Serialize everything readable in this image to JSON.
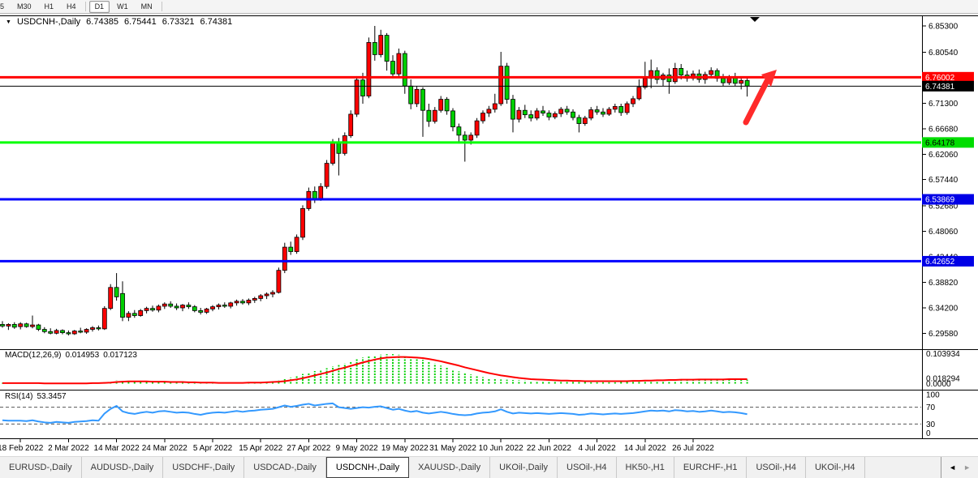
{
  "toolbar": {
    "buttons": [
      "5",
      "M30",
      "H1",
      "H4",
      "D1",
      "W1",
      "MN"
    ],
    "active": "D1"
  },
  "chart": {
    "header": {
      "dropdown_glyph": "▼",
      "title": "USDCNH-,Daily",
      "open": "6.74385",
      "high": "6.75441",
      "low": "6.73321",
      "close": "6.74381"
    },
    "macd": {
      "label": "MACD(12,26,9)",
      "value_main": "0.014953",
      "value_signal": "0.017123"
    },
    "rsi": {
      "label": "RSI(14)",
      "value": "53.3457"
    }
  },
  "chart_data": {
    "type": "candlestick",
    "title": "USDCNH-, Daily",
    "ylim": [
      6.2958,
      6.853
    ],
    "price_axis_ticks": [
      "6.85300",
      "6.80540",
      "6.71300",
      "6.66680",
      "6.62060",
      "6.57440",
      "6.52680",
      "6.48060",
      "6.43440",
      "6.38820",
      "6.34200",
      "6.29580"
    ],
    "horizontal_lines": [
      {
        "value": "6.76002",
        "price": 6.76002,
        "color": "#ff0000",
        "badge_color": "#ff0000",
        "text_color": "#ffffff",
        "width": 3
      },
      {
        "value": "6.74381",
        "price": 6.74381,
        "color": "#000000",
        "badge_color": "#000000",
        "text_color": "#ffffff",
        "width": 1
      },
      {
        "value": "6.64178",
        "price": 6.64178,
        "color": "#00ff00",
        "badge_color": "#00dd00",
        "text_color": "#000000",
        "width": 3
      },
      {
        "value": "6.53869",
        "price": 6.53869,
        "color": "#0000ff",
        "badge_color": "#0000e6",
        "text_color": "#ffffff",
        "width": 3
      },
      {
        "value": "6.42652",
        "price": 6.42652,
        "color": "#0000ff",
        "badge_color": "#0000e6",
        "text_color": "#ffffff",
        "width": 3
      }
    ],
    "date_labels": [
      "18 Feb 2022",
      "2 Mar 2022",
      "14 Mar 2022",
      "24 Mar 2022",
      "5 Apr 2022",
      "15 Apr 2022",
      "27 Apr 2022",
      "9 May 2022",
      "19 May 2022",
      "31 May 2022",
      "10 Jun 2022",
      "22 Jun 2022",
      "4 Jul 2022",
      "14 Jul 2022",
      "26 Jul 2022"
    ],
    "candles": [
      [
        6.312,
        6.318,
        6.306,
        6.309
      ],
      [
        6.309,
        6.314,
        6.302,
        6.312
      ],
      [
        6.312,
        6.316,
        6.304,
        6.307
      ],
      [
        6.308,
        6.316,
        6.303,
        6.313
      ],
      [
        6.313,
        6.315,
        6.306,
        6.308
      ],
      [
        6.308,
        6.328,
        6.305,
        6.311
      ],
      [
        6.311,
        6.313,
        6.3,
        6.303
      ],
      [
        6.303,
        6.307,
        6.296,
        6.299
      ],
      [
        6.299,
        6.305,
        6.294,
        6.296
      ],
      [
        6.296,
        6.304,
        6.294,
        6.301
      ],
      [
        6.301,
        6.303,
        6.294,
        6.297
      ],
      [
        6.297,
        6.301,
        6.292,
        6.295
      ],
      [
        6.295,
        6.302,
        6.293,
        6.3
      ],
      [
        6.3,
        6.306,
        6.296,
        6.298
      ],
      [
        6.298,
        6.305,
        6.295,
        6.303
      ],
      [
        6.303,
        6.309,
        6.299,
        6.306
      ],
      [
        6.306,
        6.31,
        6.301,
        6.304
      ],
      [
        6.304,
        6.345,
        6.302,
        6.341
      ],
      [
        6.341,
        6.385,
        6.338,
        6.379
      ],
      [
        6.379,
        6.405,
        6.355,
        6.362
      ],
      [
        6.368,
        6.39,
        6.318,
        6.325
      ],
      [
        6.325,
        6.336,
        6.318,
        6.332
      ],
      [
        6.332,
        6.338,
        6.324,
        6.328
      ],
      [
        6.328,
        6.34,
        6.326,
        6.337
      ],
      [
        6.337,
        6.344,
        6.332,
        6.341
      ],
      [
        6.341,
        6.346,
        6.335,
        6.338
      ],
      [
        6.338,
        6.348,
        6.334,
        6.345
      ],
      [
        6.345,
        6.352,
        6.34,
        6.349
      ],
      [
        6.349,
        6.354,
        6.342,
        6.345
      ],
      [
        6.345,
        6.35,
        6.338,
        6.342
      ],
      [
        6.342,
        6.349,
        6.336,
        6.347
      ],
      [
        6.347,
        6.352,
        6.34,
        6.344
      ],
      [
        6.344,
        6.347,
        6.334,
        6.337
      ],
      [
        6.337,
        6.342,
        6.33,
        6.334
      ],
      [
        6.334,
        6.342,
        6.331,
        6.34
      ],
      [
        6.34,
        6.347,
        6.336,
        6.344
      ],
      [
        6.344,
        6.35,
        6.339,
        6.347
      ],
      [
        6.347,
        6.352,
        6.342,
        6.345
      ],
      [
        6.345,
        6.353,
        6.341,
        6.351
      ],
      [
        6.351,
        6.357,
        6.346,
        6.354
      ],
      [
        6.354,
        6.358,
        6.348,
        6.351
      ],
      [
        6.351,
        6.359,
        6.347,
        6.356
      ],
      [
        6.356,
        6.362,
        6.351,
        6.359
      ],
      [
        6.359,
        6.367,
        6.354,
        6.364
      ],
      [
        6.364,
        6.37,
        6.358,
        6.367
      ],
      [
        6.367,
        6.374,
        6.361,
        6.37
      ],
      [
        6.37,
        6.415,
        6.368,
        6.41
      ],
      [
        6.41,
        6.46,
        6.405,
        6.452
      ],
      [
        6.452,
        6.462,
        6.438,
        6.444
      ],
      [
        6.444,
        6.475,
        6.44,
        6.47
      ],
      [
        6.47,
        6.528,
        6.465,
        6.522
      ],
      [
        6.522,
        6.56,
        6.518,
        6.553
      ],
      [
        6.553,
        6.562,
        6.532,
        6.54
      ],
      [
        6.54,
        6.568,
        6.536,
        6.562
      ],
      [
        6.562,
        6.61,
        6.558,
        6.604
      ],
      [
        6.604,
        6.648,
        6.6,
        6.641
      ],
      [
        6.641,
        6.65,
        6.582,
        6.622
      ],
      [
        6.622,
        6.66,
        6.618,
        6.654
      ],
      [
        6.654,
        6.7,
        6.65,
        6.693
      ],
      [
        6.693,
        6.762,
        6.688,
        6.755
      ],
      [
        6.755,
        6.768,
        6.712,
        6.726
      ],
      [
        6.726,
        6.832,
        6.722,
        6.823
      ],
      [
        6.823,
        6.853,
        6.79,
        6.801
      ],
      [
        6.801,
        6.846,
        6.796,
        6.836
      ],
      [
        6.836,
        6.84,
        6.772,
        6.789
      ],
      [
        6.789,
        6.8,
        6.758,
        6.766
      ],
      [
        6.766,
        6.812,
        6.762,
        6.803
      ],
      [
        6.803,
        6.808,
        6.73,
        6.744
      ],
      [
        6.744,
        6.756,
        6.702,
        6.712
      ],
      [
        6.712,
        6.744,
        6.706,
        6.738
      ],
      [
        6.738,
        6.742,
        6.652,
        6.7
      ],
      [
        6.7,
        6.712,
        6.67,
        6.68
      ],
      [
        6.68,
        6.706,
        6.676,
        6.7
      ],
      [
        6.7,
        6.726,
        6.696,
        6.72
      ],
      [
        6.72,
        6.724,
        6.692,
        6.699
      ],
      [
        6.699,
        6.704,
        6.662,
        6.67
      ],
      [
        6.67,
        6.676,
        6.64,
        6.655
      ],
      [
        6.655,
        6.662,
        6.607,
        6.646
      ],
      [
        6.646,
        6.66,
        6.638,
        6.655
      ],
      [
        6.655,
        6.686,
        6.65,
        6.681
      ],
      [
        6.681,
        6.7,
        6.676,
        6.695
      ],
      [
        6.695,
        6.708,
        6.688,
        6.702
      ],
      [
        6.702,
        6.73,
        6.696,
        6.712
      ],
      [
        6.712,
        6.806,
        6.708,
        6.78
      ],
      [
        6.78,
        6.786,
        6.712,
        6.72
      ],
      [
        6.72,
        6.728,
        6.66,
        6.684
      ],
      [
        6.684,
        6.706,
        6.678,
        6.7
      ],
      [
        6.7,
        6.71,
        6.686,
        6.692
      ],
      [
        6.692,
        6.7,
        6.68,
        6.686
      ],
      [
        6.686,
        6.704,
        6.682,
        6.699
      ],
      [
        6.699,
        6.708,
        6.69,
        6.695
      ],
      [
        6.695,
        6.7,
        6.682,
        6.688
      ],
      [
        6.688,
        6.698,
        6.684,
        6.694
      ],
      [
        6.694,
        6.706,
        6.688,
        6.702
      ],
      [
        6.702,
        6.708,
        6.692,
        6.697
      ],
      [
        6.697,
        6.702,
        6.682,
        6.687
      ],
      [
        6.687,
        6.692,
        6.66,
        6.676
      ],
      [
        6.676,
        6.69,
        6.672,
        6.686
      ],
      [
        6.686,
        6.706,
        6.682,
        6.701
      ],
      [
        6.701,
        6.708,
        6.692,
        6.697
      ],
      [
        6.697,
        6.704,
        6.688,
        6.693
      ],
      [
        6.693,
        6.706,
        6.69,
        6.702
      ],
      [
        6.702,
        6.712,
        6.696,
        6.707
      ],
      [
        6.707,
        6.712,
        6.69,
        6.696
      ],
      [
        6.696,
        6.716,
        6.692,
        6.712
      ],
      [
        6.712,
        6.726,
        6.706,
        6.721
      ],
      [
        6.721,
        6.756,
        6.718,
        6.742
      ],
      [
        6.742,
        6.788,
        6.738,
        6.758
      ],
      [
        6.758,
        6.792,
        6.74,
        6.772
      ],
      [
        6.772,
        6.778,
        6.748,
        6.756
      ],
      [
        6.756,
        6.768,
        6.744,
        6.764
      ],
      [
        6.764,
        6.776,
        6.73,
        6.752
      ],
      [
        6.752,
        6.786,
        6.748,
        6.776
      ],
      [
        6.776,
        6.784,
        6.756,
        6.764
      ],
      [
        6.764,
        6.772,
        6.752,
        6.758
      ],
      [
        6.758,
        6.772,
        6.754,
        6.766
      ],
      [
        6.766,
        6.774,
        6.75,
        6.756
      ],
      [
        6.756,
        6.77,
        6.748,
        6.765
      ],
      [
        6.765,
        6.778,
        6.758,
        6.772
      ],
      [
        6.772,
        6.776,
        6.752,
        6.758
      ],
      [
        6.758,
        6.766,
        6.744,
        6.75
      ],
      [
        6.75,
        6.764,
        6.746,
        6.76
      ],
      [
        6.76,
        6.768,
        6.744,
        6.749
      ],
      [
        6.749,
        6.758,
        6.738,
        6.754
      ],
      [
        6.754,
        6.758,
        6.725,
        6.744
      ]
    ],
    "macd": {
      "params": "12,26,9",
      "values_shown": [
        "0.014953",
        "0.017123"
      ],
      "axis_labels": [
        "0.103934",
        "0.018294",
        "0.0000"
      ],
      "histogram_color": "#00d000",
      "signal_color": "#ff0000",
      "histogram": [
        0.004,
        0.004,
        0.004,
        0.004,
        0.003,
        0.004,
        0.003,
        0.002,
        0.002,
        0.002,
        0.001,
        0.001,
        0.002,
        0.002,
        0.003,
        0.003,
        0.003,
        0.006,
        0.01,
        0.012,
        0.011,
        0.01,
        0.009,
        0.009,
        0.008,
        0.008,
        0.008,
        0.007,
        0.007,
        0.006,
        0.006,
        0.005,
        0.005,
        0.004,
        0.004,
        0.004,
        0.004,
        0.004,
        0.004,
        0.005,
        0.005,
        0.005,
        0.006,
        0.006,
        0.007,
        0.008,
        0.012,
        0.018,
        0.023,
        0.028,
        0.035,
        0.041,
        0.045,
        0.049,
        0.055,
        0.062,
        0.066,
        0.071,
        0.078,
        0.087,
        0.092,
        0.096,
        0.1,
        0.102,
        0.104,
        0.104,
        0.102,
        0.099,
        0.095,
        0.09,
        0.084,
        0.078,
        0.071,
        0.064,
        0.057,
        0.05,
        0.044,
        0.038,
        0.033,
        0.028,
        0.024,
        0.02,
        0.018,
        0.016,
        0.015,
        0.014,
        0.013,
        0.012,
        0.011,
        0.01,
        0.01,
        0.009,
        0.009,
        0.008,
        0.008,
        0.008,
        0.007,
        0.007,
        0.006,
        0.006,
        0.006,
        0.006,
        0.006,
        0.007,
        0.007,
        0.008,
        0.009,
        0.01,
        0.012,
        0.013,
        0.013,
        0.014,
        0.014,
        0.015,
        0.015,
        0.015,
        0.015,
        0.015,
        0.016,
        0.016,
        0.016,
        0.016,
        0.015,
        0.015,
        0.015
      ],
      "signal": [
        0.003,
        0.003,
        0.003,
        0.003,
        0.003,
        0.003,
        0.003,
        0.002,
        0.002,
        0.002,
        0.002,
        0.002,
        0.002,
        0.002,
        0.002,
        0.003,
        0.003,
        0.004,
        0.005,
        0.007,
        0.008,
        0.009,
        0.009,
        0.009,
        0.009,
        0.008,
        0.008,
        0.008,
        0.007,
        0.007,
        0.007,
        0.006,
        0.006,
        0.005,
        0.005,
        0.005,
        0.004,
        0.004,
        0.004,
        0.004,
        0.004,
        0.005,
        0.005,
        0.005,
        0.006,
        0.007,
        0.008,
        0.01,
        0.013,
        0.016,
        0.02,
        0.025,
        0.03,
        0.035,
        0.04,
        0.046,
        0.052,
        0.057,
        0.063,
        0.069,
        0.075,
        0.08,
        0.085,
        0.089,
        0.092,
        0.093,
        0.094,
        0.094,
        0.093,
        0.092,
        0.09,
        0.087,
        0.083,
        0.079,
        0.074,
        0.069,
        0.064,
        0.058,
        0.053,
        0.048,
        0.043,
        0.038,
        0.034,
        0.03,
        0.027,
        0.024,
        0.021,
        0.019,
        0.017,
        0.016,
        0.015,
        0.014,
        0.013,
        0.012,
        0.012,
        0.011,
        0.011,
        0.01,
        0.01,
        0.01,
        0.01,
        0.01,
        0.01,
        0.01,
        0.01,
        0.011,
        0.011,
        0.012,
        0.012,
        0.013,
        0.013,
        0.014,
        0.014,
        0.015,
        0.015,
        0.015,
        0.016,
        0.016,
        0.016,
        0.016,
        0.016,
        0.017,
        0.017,
        0.017,
        0.017
      ]
    },
    "rsi": {
      "period": 14,
      "value_shown": "53.3457",
      "levels": [
        70,
        30
      ],
      "axis_labels": [
        "100",
        "70",
        "30",
        "0"
      ],
      "line_color": "#3399ff",
      "series": [
        39,
        38,
        38,
        38,
        37,
        39,
        36,
        34,
        33,
        35,
        34,
        33,
        35,
        36,
        37,
        39,
        38,
        55,
        66,
        73,
        60,
        56,
        54,
        57,
        59,
        57,
        60,
        61,
        59,
        57,
        58,
        57,
        54,
        52,
        55,
        57,
        58,
        57,
        59,
        61,
        59,
        61,
        62,
        64,
        65,
        66,
        70,
        74,
        71,
        73,
        76,
        78,
        74,
        76,
        78,
        79,
        70,
        68,
        66,
        68,
        70,
        69,
        71,
        72,
        68,
        64,
        66,
        62,
        59,
        61,
        57,
        55,
        57,
        59,
        57,
        54,
        52,
        51,
        52,
        55,
        57,
        58,
        60,
        65,
        59,
        55,
        57,
        56,
        55,
        56,
        55,
        54,
        55,
        56,
        55,
        54,
        52,
        53,
        55,
        54,
        53,
        54,
        55,
        54,
        55,
        56,
        58,
        60,
        62,
        61,
        62,
        60,
        63,
        62,
        60,
        61,
        59,
        60,
        62,
        60,
        58,
        59,
        58,
        56,
        53.3
      ]
    },
    "annotations": [
      {
        "type": "arrow",
        "color": "#ff2222",
        "note": "up-right arrow crossing 6.76002 line after last candle"
      },
      {
        "type": "down-triangle-marker",
        "color": "#000000",
        "note": "small marker at top of chart"
      }
    ]
  },
  "tabs": {
    "items": [
      "EURUSD-,Daily",
      "AUDUSD-,Daily",
      "USDCHF-,Daily",
      "USDCAD-,Daily",
      "USDCNH-,Daily",
      "XAUUSD-,Daily",
      "UKOil-,Daily",
      "USOil-,H4",
      "HK50-,H1",
      "EURCHF-,H1",
      "USOil-,H4",
      "UKOil-,H4"
    ],
    "active_index": 4,
    "scroll_left_icon": "◄",
    "scroll_right_icon": "►"
  }
}
